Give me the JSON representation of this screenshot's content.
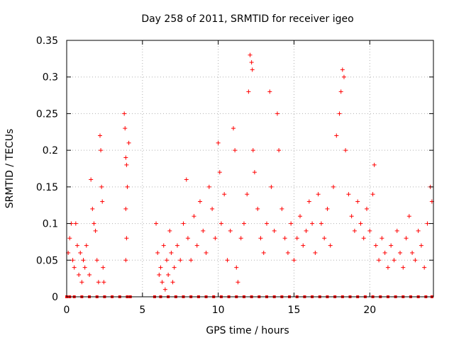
{
  "chart_data": {
    "type": "scatter",
    "title": "Day 258 of 2011, SRMTID for receiver igeo",
    "xlabel": "GPS time / hours",
    "ylabel": "SRMTID / TECUs",
    "xlim": [
      0,
      24.2
    ],
    "ylim": [
      0,
      0.35
    ],
    "grid": true,
    "x_ticks": [
      0,
      5,
      10,
      15,
      20
    ],
    "x_tick_labels": [
      "0",
      "5",
      "10",
      "15",
      "20"
    ],
    "y_ticks": [
      0,
      0.05,
      0.1,
      0.15,
      0.2,
      0.25,
      0.3,
      0.35
    ],
    "y_tick_labels": [
      "0",
      "0.05",
      "0.1",
      "0.15",
      "0.2",
      "0.25",
      "0.3",
      "0.35"
    ],
    "marker": "+",
    "marker_color": "#ff0000",
    "series_name": "SRMTID",
    "note": "dense cloud of ~1500 samples; values below are a representative read of the point cloud",
    "points": [
      [
        0.1,
        0.06
      ],
      [
        0.2,
        0.08
      ],
      [
        0.3,
        0.1
      ],
      [
        0.4,
        0.05
      ],
      [
        0.5,
        0.04
      ],
      [
        0.6,
        0.1
      ],
      [
        0.7,
        0.07
      ],
      [
        0.8,
        0.03
      ],
      [
        0.9,
        0.06
      ],
      [
        1.0,
        0.02
      ],
      [
        1.1,
        0.05
      ],
      [
        1.2,
        0.04
      ],
      [
        1.3,
        0.07
      ],
      [
        1.5,
        0.03
      ],
      [
        1.6,
        0.16
      ],
      [
        1.7,
        0.12
      ],
      [
        1.8,
        0.1
      ],
      [
        1.9,
        0.09
      ],
      [
        2.0,
        0.05
      ],
      [
        2.1,
        0.02
      ],
      [
        2.2,
        0.22
      ],
      [
        2.25,
        0.2
      ],
      [
        2.3,
        0.15
      ],
      [
        2.35,
        0.13
      ],
      [
        2.4,
        0.04
      ],
      [
        2.45,
        0.02
      ],
      [
        3.8,
        0.25
      ],
      [
        3.85,
        0.23
      ],
      [
        3.9,
        0.19
      ],
      [
        3.95,
        0.18
      ],
      [
        4.0,
        0.15
      ],
      [
        4.1,
        0.21
      ],
      [
        3.9,
        0.12
      ],
      [
        3.95,
        0.08
      ],
      [
        3.9,
        0.05
      ],
      [
        5.9,
        0.1
      ],
      [
        6.0,
        0.06
      ],
      [
        6.1,
        0.03
      ],
      [
        6.2,
        0.04
      ],
      [
        6.3,
        0.02
      ],
      [
        6.4,
        0.07
      ],
      [
        6.5,
        0.01
      ],
      [
        6.6,
        0.05
      ],
      [
        6.7,
        0.03
      ],
      [
        6.8,
        0.09
      ],
      [
        6.9,
        0.06
      ],
      [
        7.0,
        0.02
      ],
      [
        7.1,
        0.04
      ],
      [
        7.3,
        0.07
      ],
      [
        7.5,
        0.05
      ],
      [
        7.7,
        0.1
      ],
      [
        7.9,
        0.16
      ],
      [
        8.0,
        0.08
      ],
      [
        8.2,
        0.05
      ],
      [
        8.4,
        0.11
      ],
      [
        8.6,
        0.07
      ],
      [
        8.8,
        0.13
      ],
      [
        9.0,
        0.09
      ],
      [
        9.2,
        0.06
      ],
      [
        9.4,
        0.15
      ],
      [
        9.6,
        0.12
      ],
      [
        9.8,
        0.08
      ],
      [
        10.0,
        0.21
      ],
      [
        10.1,
        0.17
      ],
      [
        10.2,
        0.1
      ],
      [
        10.4,
        0.14
      ],
      [
        10.6,
        0.05
      ],
      [
        10.8,
        0.09
      ],
      [
        11.0,
        0.23
      ],
      [
        11.1,
        0.2
      ],
      [
        11.2,
        0.04
      ],
      [
        11.3,
        0.02
      ],
      [
        11.5,
        0.08
      ],
      [
        11.7,
        0.1
      ],
      [
        11.9,
        0.14
      ],
      [
        12.0,
        0.28
      ],
      [
        12.1,
        0.33
      ],
      [
        12.2,
        0.32
      ],
      [
        12.25,
        0.31
      ],
      [
        12.3,
        0.2
      ],
      [
        12.4,
        0.17
      ],
      [
        12.6,
        0.12
      ],
      [
        12.8,
        0.08
      ],
      [
        13.0,
        0.06
      ],
      [
        13.2,
        0.1
      ],
      [
        13.4,
        0.28
      ],
      [
        13.5,
        0.15
      ],
      [
        13.7,
        0.09
      ],
      [
        13.9,
        0.25
      ],
      [
        14.0,
        0.2
      ],
      [
        14.2,
        0.12
      ],
      [
        14.4,
        0.08
      ],
      [
        14.6,
        0.06
      ],
      [
        14.8,
        0.1
      ],
      [
        15.0,
        0.05
      ],
      [
        15.2,
        0.08
      ],
      [
        15.4,
        0.11
      ],
      [
        15.6,
        0.07
      ],
      [
        15.8,
        0.09
      ],
      [
        16.0,
        0.13
      ],
      [
        16.2,
        0.1
      ],
      [
        16.4,
        0.06
      ],
      [
        16.6,
        0.14
      ],
      [
        16.8,
        0.1
      ],
      [
        17.0,
        0.08
      ],
      [
        17.2,
        0.12
      ],
      [
        17.4,
        0.07
      ],
      [
        17.6,
        0.15
      ],
      [
        17.8,
        0.22
      ],
      [
        18.0,
        0.25
      ],
      [
        18.1,
        0.28
      ],
      [
        18.2,
        0.31
      ],
      [
        18.3,
        0.3
      ],
      [
        18.4,
        0.2
      ],
      [
        18.6,
        0.14
      ],
      [
        18.8,
        0.11
      ],
      [
        19.0,
        0.09
      ],
      [
        19.2,
        0.13
      ],
      [
        19.4,
        0.1
      ],
      [
        19.6,
        0.08
      ],
      [
        19.8,
        0.12
      ],
      [
        20.0,
        0.09
      ],
      [
        20.2,
        0.14
      ],
      [
        20.3,
        0.18
      ],
      [
        20.4,
        0.07
      ],
      [
        20.6,
        0.05
      ],
      [
        20.8,
        0.08
      ],
      [
        21.0,
        0.06
      ],
      [
        21.2,
        0.04
      ],
      [
        21.4,
        0.07
      ],
      [
        21.6,
        0.05
      ],
      [
        21.8,
        0.09
      ],
      [
        22.0,
        0.06
      ],
      [
        22.2,
        0.04
      ],
      [
        22.4,
        0.08
      ],
      [
        22.6,
        0.11
      ],
      [
        22.8,
        0.06
      ],
      [
        23.0,
        0.05
      ],
      [
        23.2,
        0.09
      ],
      [
        23.4,
        0.07
      ],
      [
        23.6,
        0.04
      ],
      [
        23.8,
        0.1
      ],
      [
        24.0,
        0.15
      ],
      [
        24.1,
        0.13
      ]
    ],
    "zero_markers": [
      0,
      0.2,
      0.5,
      1,
      1.5,
      2,
      2.5,
      3,
      3.5,
      4,
      4.2,
      5.8,
      6.2,
      6.7,
      7.2,
      7.7,
      8.2,
      8.7,
      9.2,
      9.7,
      10.2,
      10.7,
      11.2,
      11.7,
      12.2,
      12.7,
      13.2,
      13.7,
      14.2,
      14.7,
      15.2,
      15.7,
      16.2,
      16.7,
      17.2,
      17.7,
      18.2,
      18.7,
      19.2,
      19.7,
      20.2,
      20.7,
      21.2,
      21.7,
      22.2,
      22.7,
      23.2,
      23.7,
      24.1
    ]
  }
}
